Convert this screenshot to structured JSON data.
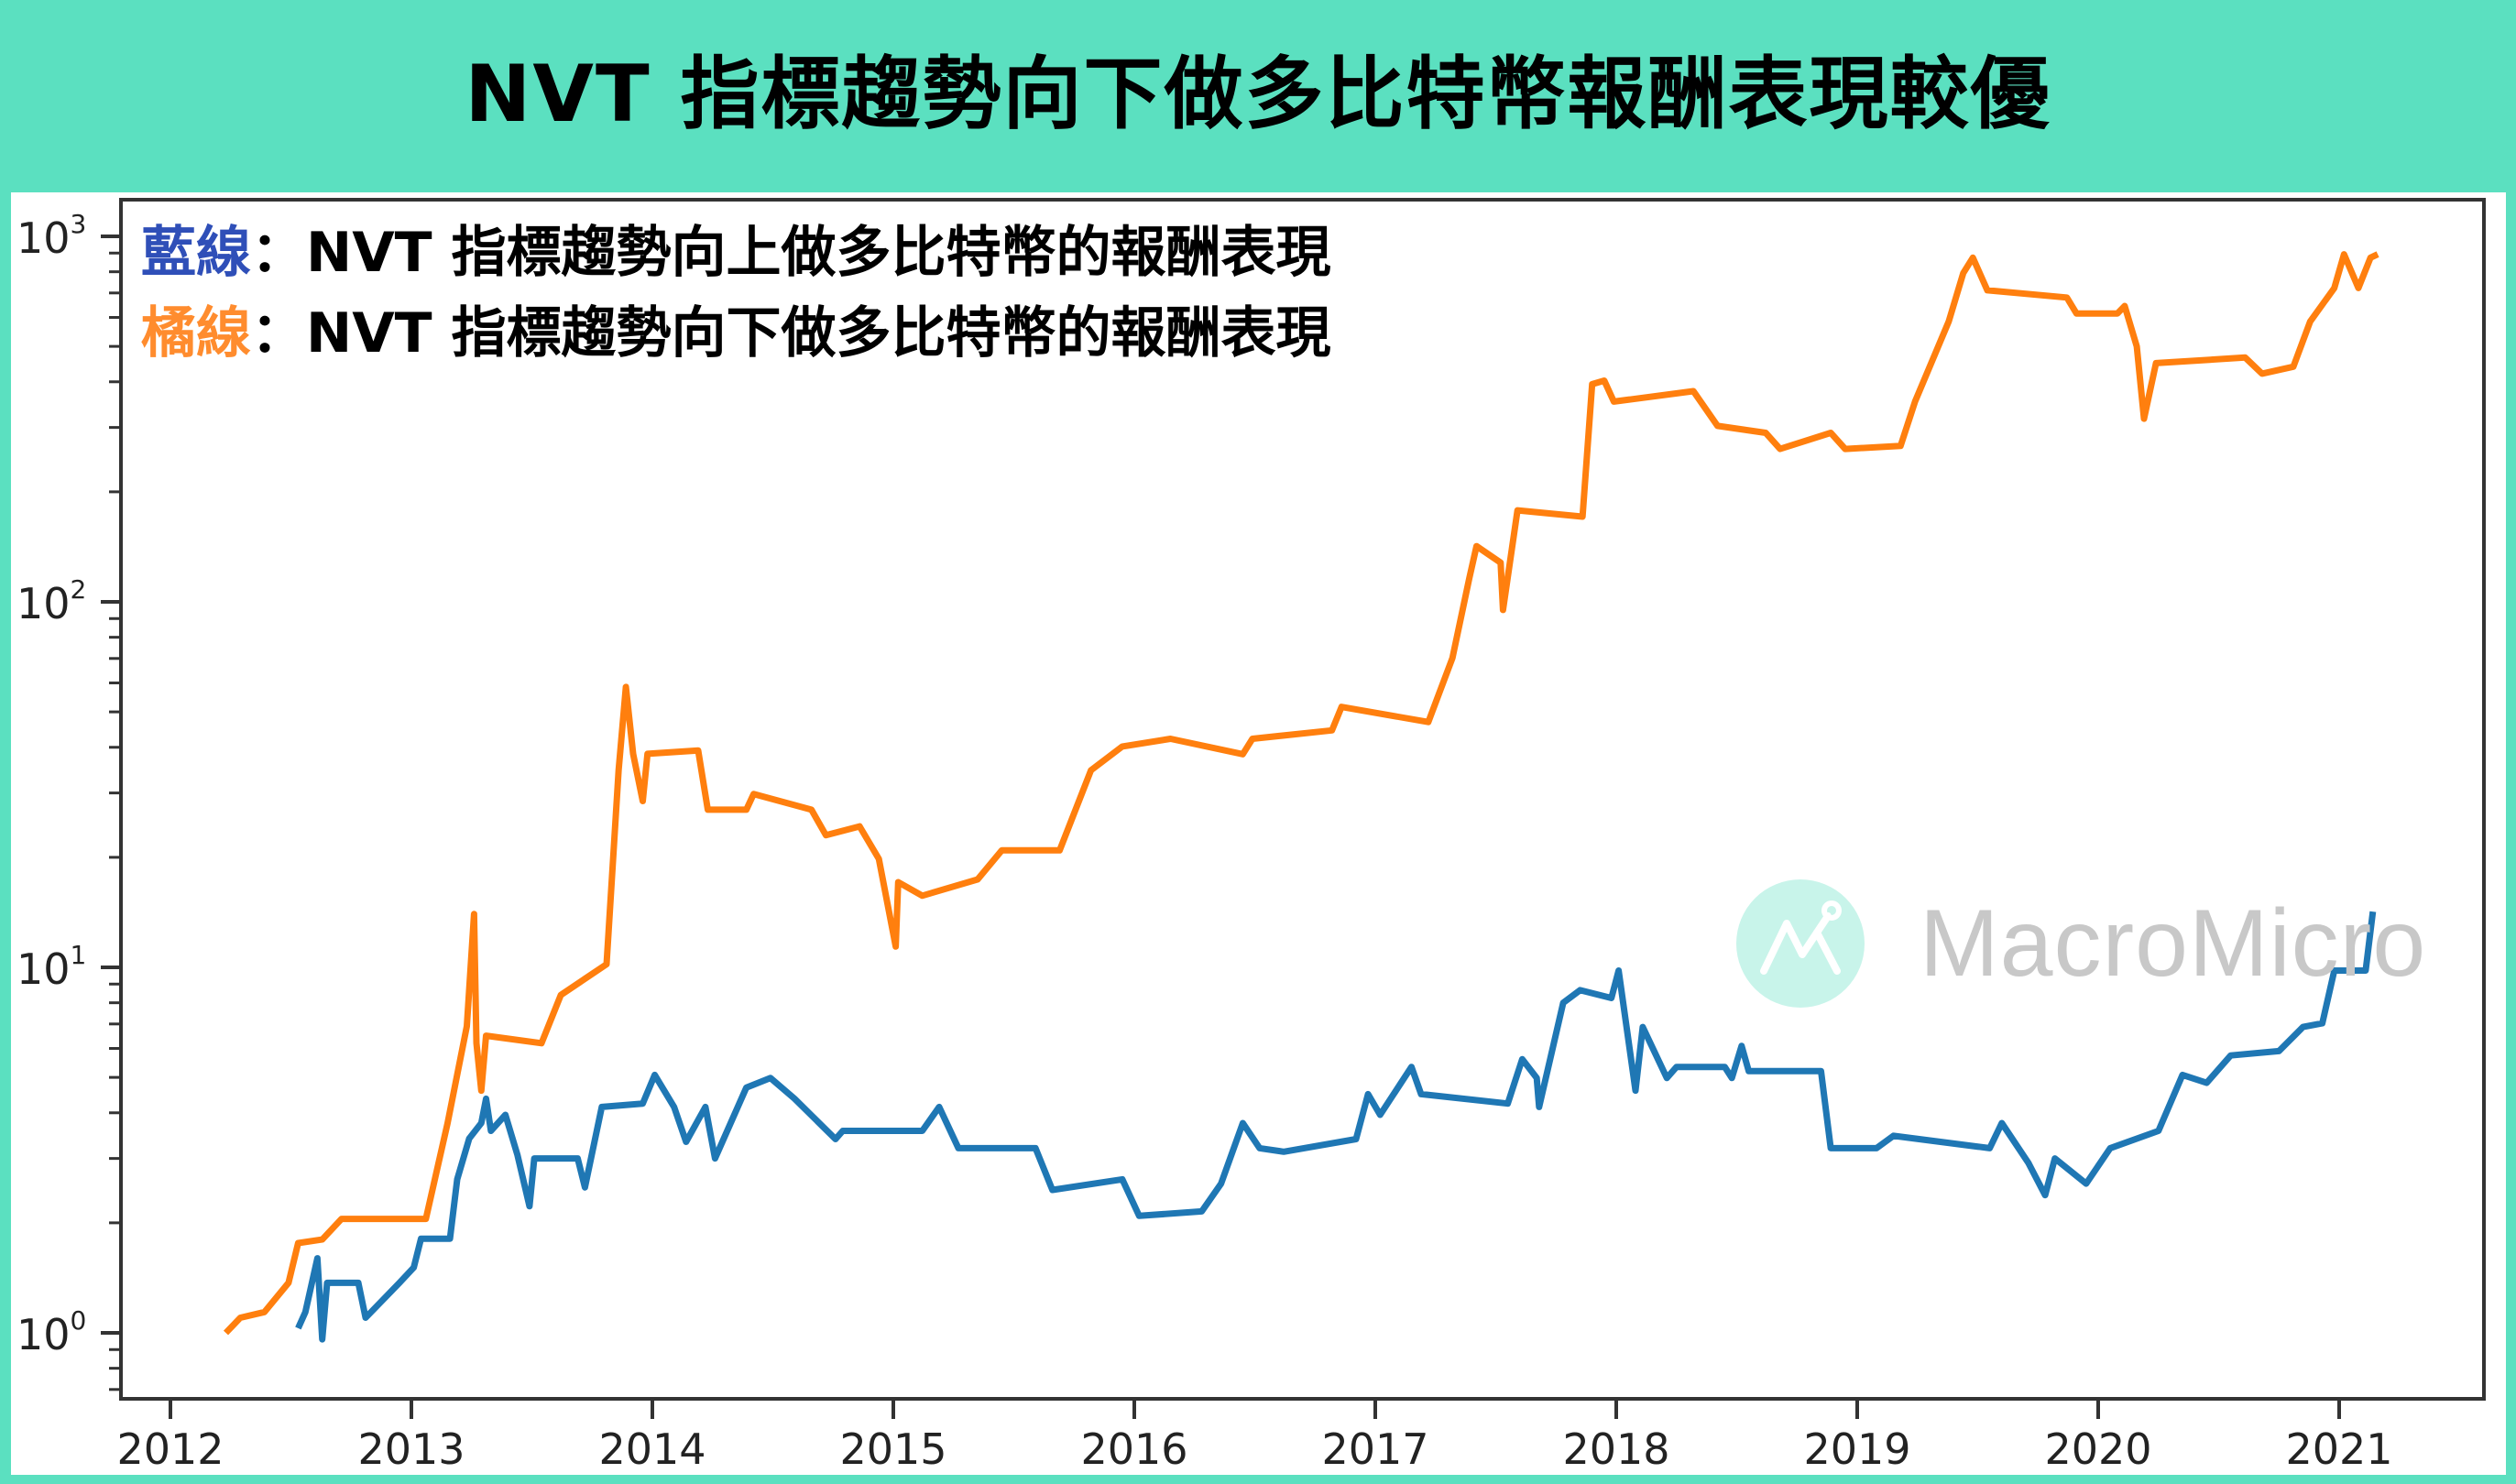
{
  "header": {
    "title": "NVT 指標趨勢向下做多比特幣報酬表現較優"
  },
  "legend": {
    "items": [
      {
        "label": "藍線",
        "separator": "：",
        "text": "NVT 指標趨勢向上做多比特幣的報酬表現",
        "color": "#2f4fb8"
      },
      {
        "label": "橘線",
        "separator": "：",
        "text": "NVT 指標趨勢向下做多比特幣的報酬表現",
        "color": "#ff8c2e"
      }
    ]
  },
  "watermark": {
    "text": "MacroMicro",
    "icon": "macromicro-logo-icon"
  },
  "colors": {
    "background": "#5be0c0",
    "panel": "#ffffff",
    "blue_line": "#1f77b4",
    "orange_line": "#ff7f0e",
    "axis": "#333333"
  },
  "chart_data": {
    "type": "line",
    "title": "NVT 指標趨勢向下做多比特幣報酬表現較優",
    "xlabel": "",
    "ylabel": "",
    "yscale": "log",
    "xlim": [
      2011.83,
      2021.64
    ],
    "ylim": [
      0.7,
      1200
    ],
    "x_ticks": [
      "2012",
      "2013",
      "2014",
      "2015",
      "2016",
      "2017",
      "2018",
      "2019",
      "2020",
      "2021"
    ],
    "y_ticks": [
      {
        "label": "10⁰",
        "base": "10",
        "exp": "0",
        "value": 1
      },
      {
        "label": "10¹",
        "base": "10",
        "exp": "1",
        "value": 10
      },
      {
        "label": "10²",
        "base": "10",
        "exp": "2",
        "value": 100
      },
      {
        "label": "10³",
        "base": "10",
        "exp": "3",
        "value": 1000
      }
    ],
    "grid": false,
    "legend_position": "upper left",
    "series": [
      {
        "name": "藍線：NVT 指標趨勢向上做多比特幣的報酬表現",
        "color": "#1f77b4",
        "points": [
          [
            2012.53,
            1.03
          ],
          [
            2012.56,
            1.14
          ],
          [
            2012.61,
            1.6
          ],
          [
            2012.63,
            0.96
          ],
          [
            2012.65,
            1.37
          ],
          [
            2012.78,
            1.37
          ],
          [
            2012.81,
            1.1
          ],
          [
            2012.95,
            1.37
          ],
          [
            2013.01,
            1.51
          ],
          [
            2013.04,
            1.81
          ],
          [
            2013.16,
            1.81
          ],
          [
            2013.19,
            2.63
          ],
          [
            2013.24,
            3.4
          ],
          [
            2013.29,
            3.75
          ],
          [
            2013.31,
            4.37
          ],
          [
            2013.33,
            3.57
          ],
          [
            2013.39,
            3.95
          ],
          [
            2013.44,
            3.07
          ],
          [
            2013.49,
            2.22
          ],
          [
            2013.51,
            3.0
          ],
          [
            2013.69,
            3.0
          ],
          [
            2013.72,
            2.5
          ],
          [
            2013.79,
            4.15
          ],
          [
            2013.96,
            4.24
          ],
          [
            2014.01,
            5.08
          ],
          [
            2014.09,
            4.15
          ],
          [
            2014.14,
            3.33
          ],
          [
            2014.22,
            4.15
          ],
          [
            2014.26,
            3.0
          ],
          [
            2014.39,
            4.69
          ],
          [
            2014.49,
            4.98
          ],
          [
            2014.59,
            4.37
          ],
          [
            2014.76,
            3.39
          ],
          [
            2014.79,
            3.57
          ],
          [
            2015.12,
            3.57
          ],
          [
            2015.19,
            4.15
          ],
          [
            2015.27,
            3.2
          ],
          [
            2015.59,
            3.2
          ],
          [
            2015.66,
            2.46
          ],
          [
            2015.95,
            2.63
          ],
          [
            2016.02,
            2.09
          ],
          [
            2016.28,
            2.15
          ],
          [
            2016.36,
            2.56
          ],
          [
            2016.45,
            3.75
          ],
          [
            2016.52,
            3.2
          ],
          [
            2016.62,
            3.13
          ],
          [
            2016.92,
            3.39
          ],
          [
            2016.97,
            4.5
          ],
          [
            2017.02,
            3.95
          ],
          [
            2017.15,
            5.34
          ],
          [
            2017.19,
            4.5
          ],
          [
            2017.55,
            4.24
          ],
          [
            2017.61,
            5.61
          ],
          [
            2017.67,
            4.98
          ],
          [
            2017.68,
            4.15
          ],
          [
            2017.78,
            8.0
          ],
          [
            2017.85,
            8.66
          ],
          [
            2017.98,
            8.24
          ],
          [
            2018.01,
            9.8
          ],
          [
            2018.08,
            4.6
          ],
          [
            2018.11,
            6.87
          ],
          [
            2018.21,
            4.98
          ],
          [
            2018.25,
            5.34
          ],
          [
            2018.45,
            5.34
          ],
          [
            2018.48,
            4.98
          ],
          [
            2018.52,
            6.1
          ],
          [
            2018.55,
            5.2
          ],
          [
            2018.85,
            5.2
          ],
          [
            2018.89,
            3.2
          ],
          [
            2019.08,
            3.2
          ],
          [
            2019.15,
            3.46
          ],
          [
            2019.55,
            3.2
          ],
          [
            2019.6,
            3.75
          ],
          [
            2019.71,
            2.92
          ],
          [
            2019.78,
            2.38
          ],
          [
            2019.82,
            3.0
          ],
          [
            2019.95,
            2.56
          ],
          [
            2020.05,
            3.2
          ],
          [
            2020.25,
            3.57
          ],
          [
            2020.35,
            5.08
          ],
          [
            2020.45,
            4.83
          ],
          [
            2020.55,
            5.74
          ],
          [
            2020.75,
            5.9
          ],
          [
            2020.85,
            6.87
          ],
          [
            2020.93,
            7.03
          ],
          [
            2020.98,
            9.8
          ],
          [
            2021.11,
            9.8
          ],
          [
            2021.14,
            14.2
          ]
        ]
      },
      {
        "name": "橘線：NVT 指標趨勢向下做多比特幣的報酬表現",
        "color": "#ff7f0e",
        "points": [
          [
            2012.23,
            1.0
          ],
          [
            2012.29,
            1.1
          ],
          [
            2012.39,
            1.14
          ],
          [
            2012.49,
            1.37
          ],
          [
            2012.53,
            1.76
          ],
          [
            2012.63,
            1.8
          ],
          [
            2012.71,
            2.05
          ],
          [
            2013.06,
            2.05
          ],
          [
            2013.15,
            3.75
          ],
          [
            2013.23,
            6.9
          ],
          [
            2013.26,
            14
          ],
          [
            2013.27,
            6.2
          ],
          [
            2013.29,
            4.6
          ],
          [
            2013.31,
            6.5
          ],
          [
            2013.54,
            6.2
          ],
          [
            2013.62,
            8.4
          ],
          [
            2013.81,
            10.2
          ],
          [
            2013.86,
            34.7
          ],
          [
            2013.89,
            58.5
          ],
          [
            2013.92,
            38.4
          ],
          [
            2013.96,
            28.5
          ],
          [
            2013.98,
            38.4
          ],
          [
            2014.19,
            39.2
          ],
          [
            2014.23,
            27
          ],
          [
            2014.39,
            27
          ],
          [
            2014.42,
            29.8
          ],
          [
            2014.66,
            27
          ],
          [
            2014.72,
            23
          ],
          [
            2014.86,
            24.3
          ],
          [
            2014.94,
            19.8
          ],
          [
            2015.01,
            11.4
          ],
          [
            2015.02,
            17.1
          ],
          [
            2015.12,
            15.7
          ],
          [
            2015.35,
            17.4
          ],
          [
            2015.45,
            20.9
          ],
          [
            2015.69,
            20.9
          ],
          [
            2015.82,
            34.6
          ],
          [
            2015.95,
            40.2
          ],
          [
            2016.15,
            42.2
          ],
          [
            2016.45,
            38.3
          ],
          [
            2016.49,
            42.2
          ],
          [
            2016.82,
            44.5
          ],
          [
            2016.86,
            51.6
          ],
          [
            2017.22,
            46.9
          ],
          [
            2017.32,
            70.2
          ],
          [
            2017.39,
            116
          ],
          [
            2017.42,
            142
          ],
          [
            2017.52,
            128
          ],
          [
            2017.53,
            95
          ],
          [
            2017.59,
            178
          ],
          [
            2017.86,
            171
          ],
          [
            2017.9,
            394
          ],
          [
            2017.95,
            403
          ],
          [
            2017.99,
            353
          ],
          [
            2018.32,
            377
          ],
          [
            2018.42,
            303
          ],
          [
            2018.62,
            290
          ],
          [
            2018.68,
            262
          ],
          [
            2018.89,
            290
          ],
          [
            2018.95,
            262
          ],
          [
            2019.18,
            267
          ],
          [
            2019.24,
            353
          ],
          [
            2019.38,
            585
          ],
          [
            2019.44,
            793
          ],
          [
            2019.48,
            874
          ],
          [
            2019.54,
            712
          ],
          [
            2019.87,
            680
          ],
          [
            2019.91,
            615
          ],
          [
            2020.08,
            615
          ],
          [
            2020.11,
            645
          ],
          [
            2020.16,
            500
          ],
          [
            2020.19,
            317
          ],
          [
            2020.24,
            450
          ],
          [
            2020.61,
            466
          ],
          [
            2020.68,
            421
          ],
          [
            2020.81,
            440
          ],
          [
            2020.88,
            585
          ],
          [
            2020.98,
            722
          ],
          [
            2021.02,
            893
          ],
          [
            2021.08,
            722
          ],
          [
            2021.13,
            874
          ],
          [
            2021.16,
            893
          ]
        ]
      }
    ]
  }
}
